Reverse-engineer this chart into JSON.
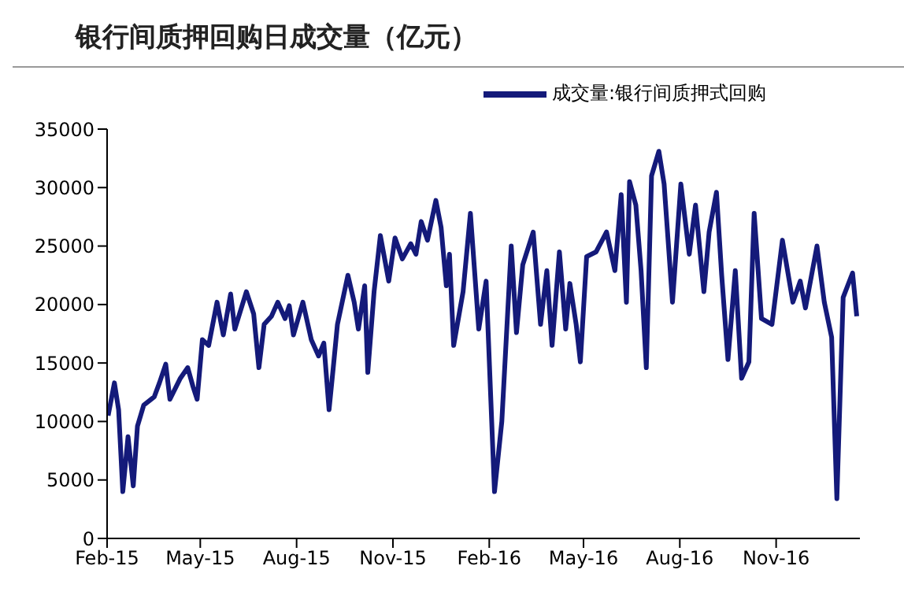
{
  "chart_data": {
    "type": "line",
    "title": "银行间质押回购日成交量（亿元）",
    "xlim": [
      "2015-02-01",
      "2017-01-20"
    ],
    "xticks": [
      {
        "value": "2015-02-01",
        "label": "Feb-15"
      },
      {
        "value": "2015-05-01",
        "label": "May-15"
      },
      {
        "value": "2015-08-01",
        "label": "Aug-15"
      },
      {
        "value": "2015-11-01",
        "label": "Nov-15"
      },
      {
        "value": "2016-02-01",
        "label": "Feb-16"
      },
      {
        "value": "2016-05-01",
        "label": "May-16"
      },
      {
        "value": "2016-08-01",
        "label": "Aug-16"
      },
      {
        "value": "2016-11-01",
        "label": "Nov-16"
      }
    ],
    "ylim": [
      0,
      35000
    ],
    "yticks": [
      0,
      5000,
      10000,
      15000,
      20000,
      25000,
      30000,
      35000
    ],
    "grid": false,
    "legend": "top",
    "marker": "none",
    "line_style": "solid",
    "x": [
      "2015-02-02",
      "2015-02-08",
      "2015-02-12",
      "2015-02-16",
      "2015-02-21",
      "2015-02-26",
      "2015-03-02",
      "2015-03-08",
      "2015-03-18",
      "2015-03-23",
      "2015-03-29",
      "2015-04-02",
      "2015-04-12",
      "2015-04-19",
      "2015-04-24",
      "2015-04-28",
      "2015-05-03",
      "2015-05-09",
      "2015-05-17",
      "2015-05-23",
      "2015-05-30",
      "2015-06-03",
      "2015-06-14",
      "2015-06-21",
      "2015-06-26",
      "2015-07-01",
      "2015-07-08",
      "2015-07-14",
      "2015-07-21",
      "2015-07-25",
      "2015-07-29",
      "2015-08-07",
      "2015-08-15",
      "2015-08-22",
      "2015-08-27",
      "2015-09-01",
      "2015-09-05",
      "2015-09-09",
      "2015-09-19",
      "2015-09-25",
      "2015-09-29",
      "2015-10-05",
      "2015-10-08",
      "2015-10-14",
      "2015-10-20",
      "2015-10-28",
      "2015-11-03",
      "2015-11-10",
      "2015-11-18",
      "2015-11-23",
      "2015-11-28",
      "2015-12-04",
      "2015-12-12",
      "2015-12-17",
      "2015-12-22",
      "2015-12-25",
      "2015-12-29",
      "2016-01-07",
      "2016-01-14",
      "2016-01-22",
      "2016-01-29",
      "2016-02-06",
      "2016-02-13",
      "2016-02-22",
      "2016-02-27",
      "2016-03-04",
      "2016-03-14",
      "2016-03-21",
      "2016-03-27",
      "2016-04-01",
      "2016-04-08",
      "2016-04-14",
      "2016-04-18",
      "2016-04-24",
      "2016-04-28",
      "2016-05-04",
      "2016-05-13",
      "2016-05-23",
      "2016-05-31",
      "2016-06-06",
      "2016-06-11",
      "2016-06-14",
      "2016-06-20",
      "2016-06-25",
      "2016-06-30",
      "2016-07-05",
      "2016-07-12",
      "2016-07-17",
      "2016-07-25",
      "2016-08-02",
      "2016-08-10",
      "2016-08-16",
      "2016-08-24",
      "2016-08-29",
      "2016-09-05",
      "2016-09-10",
      "2016-09-16",
      "2016-09-23",
      "2016-09-29",
      "2016-10-06",
      "2016-10-11",
      "2016-10-18",
      "2016-10-28",
      "2016-11-07",
      "2016-11-17",
      "2016-11-24",
      "2016-11-29",
      "2016-12-10",
      "2016-12-17",
      "2016-12-24",
      "2016-12-29",
      "2017-01-04",
      "2017-01-13",
      "2017-01-17"
    ],
    "series": [
      {
        "name": "成交量:银行间质押式回购",
        "color": "#141a7a",
        "values": [
          10500,
          13300,
          11000,
          4000,
          8700,
          4500,
          9600,
          11400,
          12100,
          13300,
          14900,
          11900,
          13700,
          14600,
          13000,
          11900,
          17000,
          16500,
          20200,
          17400,
          20900,
          17900,
          21100,
          19200,
          14600,
          18300,
          19000,
          20200,
          18800,
          19900,
          17400,
          20200,
          17000,
          15600,
          16700,
          11000,
          14600,
          18300,
          22500,
          20200,
          17900,
          21600,
          14200,
          21100,
          25900,
          22000,
          25700,
          23900,
          25200,
          24300,
          27100,
          25500,
          28900,
          26600,
          21600,
          24300,
          16500,
          21100,
          27800,
          17900,
          22000,
          4000,
          10000,
          25000,
          17600,
          23400,
          26200,
          18300,
          22900,
          16500,
          24500,
          17900,
          21800,
          18300,
          15100,
          24100,
          24500,
          26200,
          22900,
          29400,
          20200,
          30500,
          28500,
          22900,
          14600,
          31000,
          33100,
          30300,
          20200,
          30300,
          24300,
          28500,
          21100,
          26200,
          29600,
          22500,
          15300,
          22900,
          13700,
          15100,
          27800,
          18800,
          18300,
          25500,
          20200,
          22000,
          19700,
          25000,
          20200,
          17200,
          3400,
          20600,
          22700,
          19000
        ]
      }
    ]
  }
}
